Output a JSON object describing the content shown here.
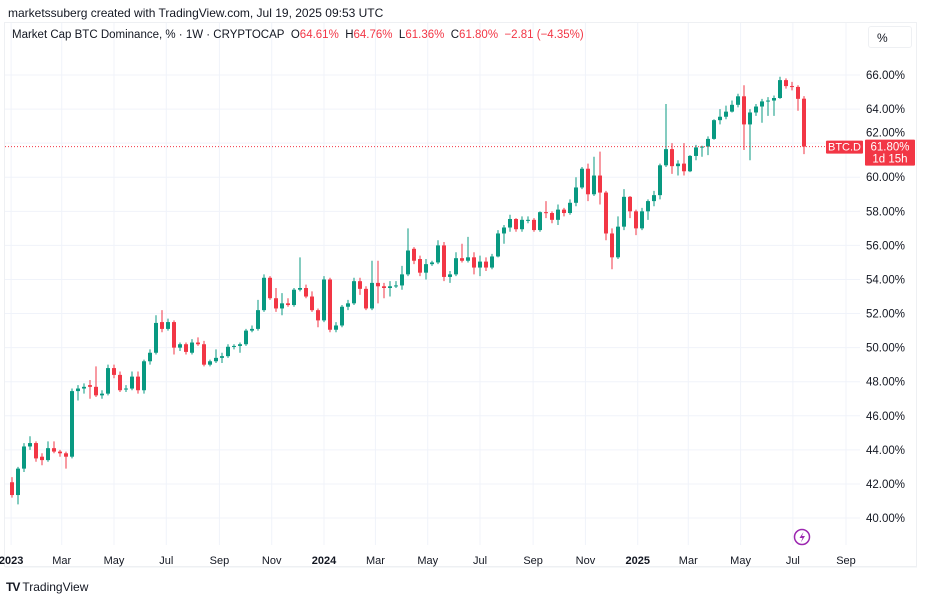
{
  "credit": "marketssuberg created with TradingView.com, Jul 19, 2025 09:53 UTC",
  "legend": {
    "title": "Market Cap BTC Dominance, % · 1W · CRYPTOCAP",
    "o_label": "O",
    "o": "64.61%",
    "h_label": "H",
    "h": "64.76%",
    "l_label": "L",
    "l": "61.36%",
    "c_label": "C",
    "c": "61.80%",
    "change": "−2.81 (−4.35%)"
  },
  "scale_button": "%",
  "price_tag": {
    "symbol": "BTC.D",
    "value": "61.80%",
    "countdown": "1d 15h"
  },
  "footer_logo": "TradingView",
  "colors": {
    "up": "#089981",
    "down": "#f23645",
    "grid": "#f0f3fa",
    "text": "#131722",
    "event": "#9c27b0"
  },
  "event_icon": "lightning-icon",
  "chart_data": {
    "type": "candlestick",
    "symbol": "BTC.D",
    "interval": "1W",
    "ylim": [
      38.6,
      67.2
    ],
    "grid": true,
    "last_price": 61.8,
    "y_ticks": [
      "40.00%",
      "42.00%",
      "44.00%",
      "46.00%",
      "48.00%",
      "50.00%",
      "52.00%",
      "54.00%",
      "56.00%",
      "58.00%",
      "60.00%",
      "62.00%",
      "64.00%",
      "66.00%"
    ],
    "x_ticks": [
      {
        "label": "2023",
        "date": "2023-01-01",
        "bold": true
      },
      {
        "label": "Mar",
        "date": "2023-03-01"
      },
      {
        "label": "May",
        "date": "2023-05-01"
      },
      {
        "label": "Jul",
        "date": "2023-07-01"
      },
      {
        "label": "Sep",
        "date": "2023-09-01"
      },
      {
        "label": "Nov",
        "date": "2023-11-01"
      },
      {
        "label": "2024",
        "date": "2024-01-01",
        "bold": true
      },
      {
        "label": "Mar",
        "date": "2024-03-01"
      },
      {
        "label": "May",
        "date": "2024-05-01"
      },
      {
        "label": "Jul",
        "date": "2024-07-01"
      },
      {
        "label": "Sep",
        "date": "2024-09-01"
      },
      {
        "label": "Nov",
        "date": "2024-11-01"
      },
      {
        "label": "2025",
        "date": "2025-01-01",
        "bold": true
      },
      {
        "label": "Mar",
        "date": "2025-03-01"
      },
      {
        "label": "May",
        "date": "2025-05-01"
      },
      {
        "label": "Jul",
        "date": "2025-07-01"
      },
      {
        "label": "Sep",
        "date": "2025-09-01"
      }
    ],
    "fields": [
      "date",
      "open",
      "high",
      "low",
      "close"
    ],
    "candles": [
      [
        "2023-01-02",
        42.1,
        42.4,
        41.2,
        41.35
      ],
      [
        "2023-01-09",
        41.35,
        43.0,
        40.8,
        42.9
      ],
      [
        "2023-01-16",
        42.9,
        44.4,
        42.7,
        44.2
      ],
      [
        "2023-01-23",
        44.2,
        44.8,
        44.0,
        44.4
      ],
      [
        "2023-01-30",
        44.4,
        44.5,
        43.3,
        43.5
      ],
      [
        "2023-02-06",
        43.6,
        43.8,
        43.1,
        43.4
      ],
      [
        "2023-02-13",
        43.4,
        44.5,
        43.3,
        44.1
      ],
      [
        "2023-02-20",
        44.1,
        44.5,
        43.8,
        43.9
      ],
      [
        "2023-02-27",
        43.9,
        44.0,
        43.6,
        43.8
      ],
      [
        "2023-03-06",
        43.8,
        43.9,
        42.9,
        43.6
      ],
      [
        "2023-03-13",
        43.6,
        47.6,
        43.5,
        47.45
      ],
      [
        "2023-03-20",
        47.45,
        47.8,
        46.9,
        47.6
      ],
      [
        "2023-03-27",
        47.6,
        47.9,
        47.3,
        47.7
      ],
      [
        "2023-04-03",
        47.8,
        48.1,
        47.0,
        47.7
      ],
      [
        "2023-04-10",
        47.7,
        48.9,
        47.1,
        47.2
      ],
      [
        "2023-04-17",
        47.2,
        47.5,
        47.0,
        47.3
      ],
      [
        "2023-04-24",
        47.3,
        49.0,
        47.2,
        48.8
      ],
      [
        "2023-05-01",
        48.8,
        49.0,
        48.2,
        48.4
      ],
      [
        "2023-05-08",
        48.4,
        48.6,
        47.4,
        47.5
      ],
      [
        "2023-05-15",
        47.6,
        47.8,
        47.4,
        47.6
      ],
      [
        "2023-05-22",
        47.6,
        48.6,
        47.5,
        48.3
      ],
      [
        "2023-05-29",
        48.3,
        48.6,
        47.3,
        47.5
      ],
      [
        "2023-06-05",
        47.5,
        49.3,
        47.3,
        49.2
      ],
      [
        "2023-06-12",
        49.2,
        49.9,
        49.0,
        49.7
      ],
      [
        "2023-06-19",
        49.7,
        51.9,
        49.6,
        51.45
      ],
      [
        "2023-06-26",
        51.5,
        52.2,
        50.9,
        51.1
      ],
      [
        "2023-07-03",
        51.1,
        51.7,
        51.0,
        51.5
      ],
      [
        "2023-07-10",
        51.5,
        51.6,
        49.6,
        50.0
      ],
      [
        "2023-07-17",
        50.0,
        50.3,
        49.8,
        50.2
      ],
      [
        "2023-07-24",
        50.2,
        50.3,
        49.6,
        49.75
      ],
      [
        "2023-07-31",
        49.7,
        50.5,
        49.6,
        50.3
      ],
      [
        "2023-08-07",
        50.3,
        50.6,
        50.1,
        50.2
      ],
      [
        "2023-08-14",
        50.2,
        50.4,
        48.9,
        49.0
      ],
      [
        "2023-08-21",
        49.0,
        49.3,
        48.9,
        49.2
      ],
      [
        "2023-08-28",
        49.2,
        49.9,
        49.1,
        49.4
      ],
      [
        "2023-09-04",
        49.4,
        49.7,
        49.1,
        49.5
      ],
      [
        "2023-09-11",
        49.5,
        50.2,
        49.4,
        50.05
      ],
      [
        "2023-09-18",
        50.05,
        50.2,
        49.9,
        50.1
      ],
      [
        "2023-09-25",
        50.1,
        50.3,
        49.7,
        50.2
      ],
      [
        "2023-10-02",
        50.2,
        51.1,
        50.1,
        51.0
      ],
      [
        "2023-10-09",
        51.0,
        51.3,
        50.9,
        51.1
      ],
      [
        "2023-10-16",
        51.1,
        52.8,
        51.0,
        52.2
      ],
      [
        "2023-10-23",
        52.2,
        54.3,
        52.1,
        54.1
      ],
      [
        "2023-10-30",
        54.1,
        54.2,
        52.8,
        52.9
      ],
      [
        "2023-11-06",
        52.9,
        53.5,
        52.1,
        52.3
      ],
      [
        "2023-11-13",
        52.3,
        53.2,
        51.9,
        52.6
      ],
      [
        "2023-11-20",
        52.6,
        52.9,
        52.4,
        52.5
      ],
      [
        "2023-11-27",
        52.5,
        53.5,
        52.4,
        53.4
      ],
      [
        "2023-12-04",
        53.4,
        55.3,
        53.3,
        53.5
      ],
      [
        "2023-12-11",
        53.5,
        53.7,
        52.9,
        53.0
      ],
      [
        "2023-12-18",
        53.0,
        53.3,
        52.1,
        52.2
      ],
      [
        "2023-12-25",
        52.2,
        52.3,
        51.2,
        51.6
      ],
      [
        "2024-01-01",
        51.6,
        54.2,
        51.5,
        54.0
      ],
      [
        "2024-01-08",
        54.0,
        54.1,
        50.9,
        51.05
      ],
      [
        "2024-01-15",
        51.05,
        51.5,
        50.9,
        51.3
      ],
      [
        "2024-01-22",
        51.3,
        52.5,
        51.2,
        52.4
      ],
      [
        "2024-01-29",
        52.4,
        52.8,
        52.2,
        52.6
      ],
      [
        "2024-02-05",
        52.6,
        54.1,
        52.5,
        53.9
      ],
      [
        "2024-02-12",
        53.9,
        54.1,
        53.1,
        53.45
      ],
      [
        "2024-02-19",
        53.45,
        53.6,
        52.2,
        52.3
      ],
      [
        "2024-02-26",
        52.3,
        55.1,
        52.2,
        53.8
      ],
      [
        "2024-03-04",
        53.8,
        55.1,
        52.6,
        53.6
      ],
      [
        "2024-03-11",
        53.6,
        53.8,
        52.9,
        53.5
      ],
      [
        "2024-03-18",
        53.5,
        53.9,
        53.0,
        53.6
      ],
      [
        "2024-03-25",
        53.6,
        53.9,
        53.5,
        53.65
      ],
      [
        "2024-04-01",
        53.65,
        54.8,
        53.4,
        54.3
      ],
      [
        "2024-04-08",
        54.3,
        57.0,
        54.2,
        55.7
      ],
      [
        "2024-04-15",
        55.8,
        55.9,
        54.9,
        55.1
      ],
      [
        "2024-04-22",
        55.2,
        55.4,
        54.2,
        54.4
      ],
      [
        "2024-04-29",
        54.4,
        55.2,
        54.0,
        54.9
      ],
      [
        "2024-05-06",
        54.9,
        55.1,
        54.8,
        55.0
      ],
      [
        "2024-05-13",
        55.0,
        56.3,
        54.9,
        56.0
      ],
      [
        "2024-05-20",
        56.0,
        56.2,
        53.9,
        54.15
      ],
      [
        "2024-05-27",
        54.15,
        54.5,
        53.8,
        54.3
      ],
      [
        "2024-06-03",
        54.3,
        55.6,
        54.2,
        55.25
      ],
      [
        "2024-06-10",
        55.25,
        56.1,
        55.0,
        55.1
      ],
      [
        "2024-06-17",
        55.1,
        56.5,
        55.0,
        55.3
      ],
      [
        "2024-06-24",
        55.3,
        55.6,
        54.3,
        54.7
      ],
      [
        "2024-07-01",
        54.7,
        55.4,
        54.2,
        55.05
      ],
      [
        "2024-07-08",
        55.05,
        55.3,
        54.5,
        54.7
      ],
      [
        "2024-07-15",
        54.7,
        55.5,
        54.6,
        55.35
      ],
      [
        "2024-07-22",
        55.35,
        56.9,
        55.3,
        56.7
      ],
      [
        "2024-07-29",
        56.7,
        57.2,
        56.1,
        57.05
      ],
      [
        "2024-08-05",
        57.05,
        57.8,
        56.8,
        57.55
      ],
      [
        "2024-08-12",
        57.55,
        57.6,
        56.8,
        56.95
      ],
      [
        "2024-08-19",
        56.95,
        57.7,
        56.8,
        57.5
      ],
      [
        "2024-08-26",
        57.5,
        57.7,
        57.3,
        57.5
      ],
      [
        "2024-09-02",
        57.5,
        57.6,
        56.8,
        56.9
      ],
      [
        "2024-09-09",
        56.9,
        58.0,
        56.8,
        57.95
      ],
      [
        "2024-09-16",
        57.95,
        58.6,
        57.6,
        57.9
      ],
      [
        "2024-09-23",
        57.9,
        58.0,
        57.3,
        57.5
      ],
      [
        "2024-09-30",
        57.5,
        58.4,
        57.2,
        58.1
      ],
      [
        "2024-10-07",
        58.1,
        58.2,
        57.7,
        57.9
      ],
      [
        "2024-10-14",
        57.9,
        58.7,
        57.8,
        58.5
      ],
      [
        "2024-10-21",
        58.5,
        60.0,
        58.3,
        59.4
      ],
      [
        "2024-10-28",
        59.4,
        60.6,
        59.3,
        60.5
      ],
      [
        "2024-11-04",
        60.5,
        60.8,
        58.6,
        59.0
      ],
      [
        "2024-11-11",
        59.0,
        61.2,
        58.9,
        60.1
      ],
      [
        "2024-11-18",
        60.1,
        61.5,
        58.4,
        59.1
      ],
      [
        "2024-11-25",
        59.1,
        59.2,
        56.3,
        56.7
      ],
      [
        "2024-12-02",
        56.7,
        57.0,
        54.6,
        55.3
      ],
      [
        "2024-12-09",
        55.3,
        57.7,
        55.2,
        57.1
      ],
      [
        "2024-12-16",
        57.1,
        59.3,
        56.9,
        58.85
      ],
      [
        "2024-12-23",
        58.85,
        58.9,
        57.6,
        58.0
      ],
      [
        "2024-12-30",
        58.0,
        58.1,
        56.6,
        57.0
      ],
      [
        "2025-01-06",
        57.0,
        58.2,
        56.9,
        58.0
      ],
      [
        "2025-01-13",
        58.0,
        58.7,
        57.5,
        58.6
      ],
      [
        "2025-01-20",
        58.6,
        59.2,
        58.3,
        58.95
      ],
      [
        "2025-01-27",
        58.95,
        60.8,
        58.7,
        60.7
      ],
      [
        "2025-02-03",
        60.7,
        64.3,
        60.6,
        61.65
      ],
      [
        "2025-02-10",
        61.65,
        62.0,
        60.2,
        60.65
      ],
      [
        "2025-02-17",
        60.65,
        61.0,
        60.1,
        60.8
      ],
      [
        "2025-02-24",
        60.8,
        62.0,
        60.1,
        60.35
      ],
      [
        "2025-03-03",
        60.35,
        61.3,
        60.3,
        61.25
      ],
      [
        "2025-03-10",
        61.25,
        61.9,
        61.0,
        61.75
      ],
      [
        "2025-03-17",
        61.75,
        61.85,
        61.2,
        61.8
      ],
      [
        "2025-03-24",
        61.8,
        62.4,
        61.3,
        62.25
      ],
      [
        "2025-03-31",
        62.25,
        63.4,
        62.2,
        63.35
      ],
      [
        "2025-04-07",
        63.35,
        64.0,
        63.1,
        63.55
      ],
      [
        "2025-04-14",
        63.55,
        64.2,
        63.4,
        63.85
      ],
      [
        "2025-04-21",
        63.85,
        64.5,
        63.8,
        64.25
      ],
      [
        "2025-04-28",
        64.25,
        64.9,
        64.1,
        64.75
      ],
      [
        "2025-05-05",
        64.75,
        65.4,
        61.6,
        63.1
      ],
      [
        "2025-05-12",
        63.1,
        64.0,
        61.0,
        63.8
      ],
      [
        "2025-05-19",
        63.8,
        64.3,
        63.6,
        64.15
      ],
      [
        "2025-05-26",
        64.15,
        64.6,
        63.2,
        64.45
      ],
      [
        "2025-06-02",
        64.45,
        64.7,
        63.6,
        64.5
      ],
      [
        "2025-06-09",
        64.5,
        64.8,
        63.6,
        64.65
      ],
      [
        "2025-06-16",
        64.65,
        65.9,
        64.6,
        65.7
      ],
      [
        "2025-06-23",
        65.7,
        65.8,
        65.2,
        65.35
      ],
      [
        "2025-06-30",
        65.35,
        65.6,
        65.1,
        65.3
      ],
      [
        "2025-07-07",
        65.3,
        65.4,
        63.9,
        64.6
      ],
      [
        "2025-07-14",
        64.61,
        64.76,
        61.36,
        61.8
      ]
    ]
  }
}
